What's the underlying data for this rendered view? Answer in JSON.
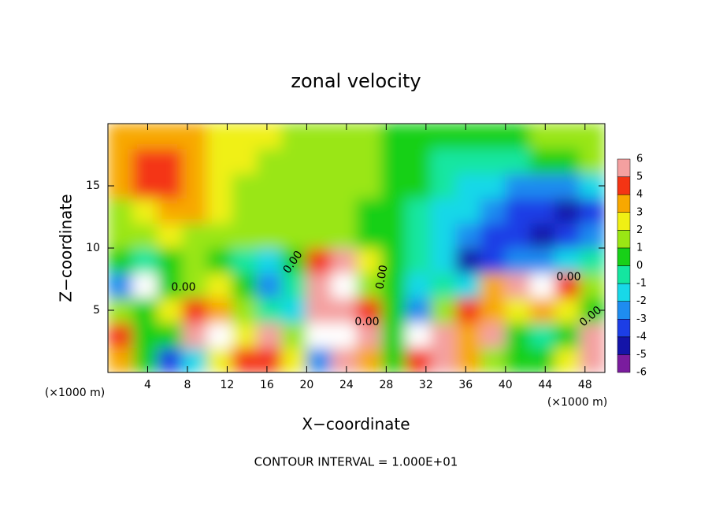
{
  "chart_data": {
    "type": "heatmap",
    "title": "zonal velocity",
    "xlabel": "X−coordinate",
    "ylabel": "Z−coordinate",
    "x_unit": "(×1000 m)",
    "y_unit": "(×1000 m)",
    "footnote": "CONTOUR INTERVAL = 1.000E+01",
    "xlim": [
      0,
      50
    ],
    "ylim": [
      0,
      20
    ],
    "xticks": [
      4,
      8,
      12,
      16,
      20,
      24,
      28,
      32,
      36,
      40,
      44,
      48
    ],
    "yticks": [
      5,
      10,
      15
    ],
    "x": [
      1.25,
      3.75,
      6.25,
      8.75,
      11.25,
      13.75,
      16.25,
      18.75,
      21.25,
      23.75,
      26.25,
      28.75,
      31.25,
      33.75,
      36.25,
      38.75,
      41.25,
      43.75,
      46.25,
      48.75
    ],
    "y": [
      1,
      3,
      5,
      7,
      9,
      11,
      13,
      15,
      17,
      19
    ],
    "z": [
      [
        3,
        0,
        -4,
        -2,
        2,
        4,
        4,
        2,
        -3,
        5,
        3,
        0,
        4,
        5,
        3,
        1,
        0,
        0,
        2,
        5
      ],
      [
        4,
        0,
        0,
        5,
        -7,
        2,
        5,
        1,
        -7,
        -7,
        5,
        0,
        7,
        6,
        3,
        5,
        0,
        -1,
        0,
        6
      ],
      [
        1,
        0,
        2,
        4,
        3,
        1,
        -1,
        -2,
        5,
        6,
        4,
        0,
        -3,
        1,
        4,
        3,
        2,
        3,
        2,
        0
      ],
      [
        -3,
        -7,
        0,
        1,
        2,
        0,
        -3,
        -1,
        5,
        7,
        1,
        0,
        -2,
        -1,
        -2,
        3,
        5,
        7,
        4,
        1
      ],
      [
        0,
        -1,
        0,
        1,
        0,
        -1,
        -2,
        0,
        4,
        5,
        2,
        0,
        -1,
        -2,
        -5,
        -4,
        -3,
        -3,
        -2,
        -1
      ],
      [
        1,
        1,
        2,
        1,
        1,
        1,
        1,
        1,
        1,
        1,
        0,
        0,
        -1,
        -2,
        -3,
        -4,
        -4,
        -5,
        -4,
        -3
      ],
      [
        1,
        2,
        3,
        3,
        2,
        1,
        1,
        1,
        1,
        1,
        0,
        0,
        -1,
        -2,
        -2,
        -3,
        -4,
        -4,
        -5,
        -4
      ],
      [
        3,
        4,
        4,
        3,
        2,
        1,
        1,
        1,
        1,
        1,
        1,
        0,
        0,
        -1,
        -2,
        -2,
        -3,
        -3,
        -3,
        -2
      ],
      [
        3,
        4,
        4,
        3,
        2,
        2,
        1,
        1,
        1,
        1,
        1,
        0,
        0,
        -1,
        -1,
        -1,
        -1,
        0,
        0,
        1
      ],
      [
        3,
        3,
        3,
        3,
        2,
        2,
        2,
        1,
        1,
        1,
        1,
        0,
        0,
        0,
        0,
        0,
        0,
        1,
        1,
        1
      ]
    ],
    "colorbar": {
      "levels": [
        -6,
        -5,
        -4,
        -3,
        -2,
        -1,
        0,
        1,
        2,
        3,
        4,
        5,
        6
      ],
      "colors": [
        "#7a1c9e",
        "#1414a8",
        "#1c3ee6",
        "#1e8cf0",
        "#18d8e8",
        "#14e6a0",
        "#18d018",
        "#9ae614",
        "#f0f014",
        "#f8a800",
        "#f43414",
        "#f4a0a0"
      ],
      "out_of_range_color": "#ffffff"
    },
    "contour_labels": [
      "0.00",
      "0.00",
      "0.00",
      "0.00",
      "0.00",
      "0.00"
    ]
  }
}
